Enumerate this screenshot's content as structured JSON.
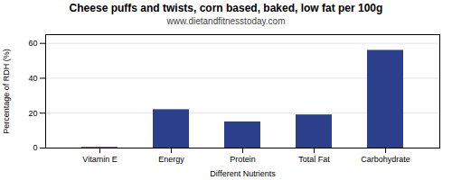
{
  "chart_data": {
    "type": "bar",
    "title": "Cheese puffs and twists, corn based, baked, low fat per 100g",
    "subtitle": "www.dietandfitnesstoday.com",
    "categories": [
      "Vitamin E",
      "Energy",
      "Protein",
      "Total Fat",
      "Carbohydrate"
    ],
    "values": [
      0.4,
      22,
      15,
      19,
      56
    ],
    "color": "#2b3f8c",
    "xlabel": "Different Nutrients",
    "ylabel": "Percentage of RDH (%)",
    "ylim": [
      0,
      65
    ],
    "yticks": [
      0,
      20,
      40,
      60
    ],
    "grid": true
  }
}
